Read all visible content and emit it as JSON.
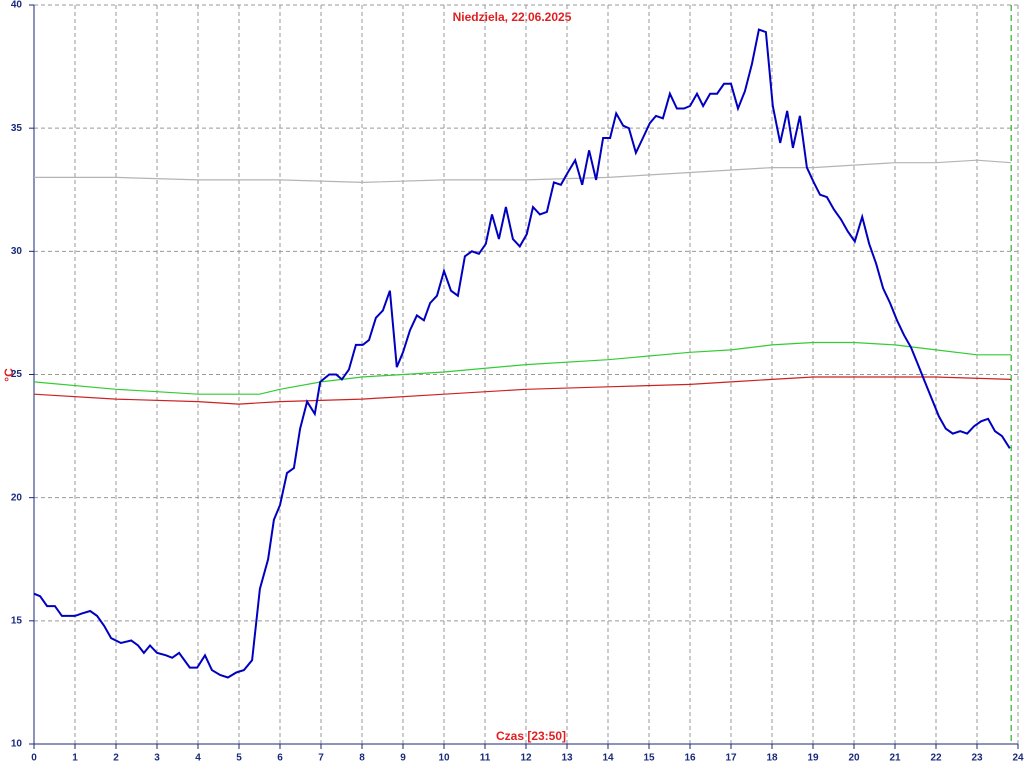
{
  "chart_data": {
    "type": "line",
    "title": "Niedziela, 22.06.2025",
    "x_label": "Czas [23:50]",
    "y_label": "°C",
    "xlim": [
      0,
      24
    ],
    "ylim": [
      10,
      40
    ],
    "xticks": [
      0,
      1,
      2,
      3,
      4,
      5,
      6,
      7,
      8,
      9,
      10,
      11,
      12,
      13,
      14,
      15,
      16,
      17,
      18,
      19,
      20,
      21,
      22,
      23,
      24
    ],
    "yticks": [
      10,
      15,
      20,
      25,
      30,
      35,
      40
    ],
    "grid": true,
    "marker_x": 23.833,
    "marker_color": "#00a000",
    "series": [
      {
        "color": "#b4b4b4",
        "x": [
          0,
          2,
          4,
          6,
          8,
          10,
          12,
          14,
          16,
          18,
          19,
          20,
          21,
          22,
          23,
          23.83
        ],
        "values": [
          33.0,
          33.0,
          32.9,
          32.9,
          32.8,
          32.9,
          32.9,
          33.0,
          33.2,
          33.4,
          33.4,
          33.5,
          33.6,
          33.6,
          33.7,
          33.6
        ]
      },
      {
        "color": "#33cc33",
        "x": [
          0,
          2,
          3,
          4,
          5,
          5.5,
          6,
          7,
          8,
          10,
          12,
          14,
          16,
          17,
          18,
          19,
          20,
          21,
          22,
          23,
          23.83
        ],
        "values": [
          24.7,
          24.4,
          24.3,
          24.2,
          24.2,
          24.2,
          24.4,
          24.7,
          24.9,
          25.1,
          25.4,
          25.6,
          25.9,
          26.0,
          26.2,
          26.3,
          26.3,
          26.2,
          26.0,
          25.8,
          25.8
        ]
      },
      {
        "color": "#cc2222",
        "x": [
          0,
          2,
          4,
          5,
          6,
          8,
          10,
          12,
          14,
          16,
          17,
          18,
          19,
          20,
          22,
          23.83
        ],
        "values": [
          24.2,
          24.0,
          23.9,
          23.8,
          23.9,
          24.0,
          24.2,
          24.4,
          24.5,
          24.6,
          24.7,
          24.8,
          24.9,
          24.9,
          24.9,
          24.8
        ]
      },
      {
        "color": "#0000c0",
        "x": [
          0,
          0.15,
          0.32,
          0.51,
          0.68,
          1.0,
          1.17,
          1.37,
          1.54,
          1.71,
          1.88,
          2.12,
          2.37,
          2.54,
          2.68,
          2.83,
          3.0,
          3.22,
          3.37,
          3.54,
          3.8,
          3.98,
          4.17,
          4.34,
          4.54,
          4.73,
          4.93,
          5.12,
          5.32,
          5.51,
          5.71,
          5.85,
          6.0,
          6.17,
          6.34,
          6.49,
          6.66,
          6.85,
          6.98,
          7.2,
          7.37,
          7.51,
          7.68,
          7.85,
          8.02,
          8.17,
          8.34,
          8.51,
          8.68,
          8.85,
          9.0,
          9.17,
          9.34,
          9.51,
          9.66,
          9.83,
          10.0,
          10.17,
          10.34,
          10.51,
          10.68,
          10.85,
          11.02,
          11.17,
          11.34,
          11.51,
          11.68,
          11.85,
          12.02,
          12.17,
          12.34,
          12.51,
          12.68,
          12.85,
          13.02,
          13.2,
          13.37,
          13.54,
          13.71,
          13.88,
          14.05,
          14.2,
          14.37,
          14.51,
          14.68,
          14.85,
          15.02,
          15.17,
          15.34,
          15.51,
          15.68,
          15.85,
          16.0,
          16.17,
          16.32,
          16.49,
          16.66,
          16.83,
          17.0,
          17.17,
          17.34,
          17.51,
          17.68,
          17.85,
          18.02,
          18.2,
          18.37,
          18.51,
          18.68,
          18.85,
          19.02,
          19.17,
          19.34,
          19.51,
          19.68,
          19.85,
          20.02,
          20.2,
          20.37,
          20.54,
          20.71,
          20.88,
          21.05,
          21.22,
          21.39,
          21.56,
          21.73,
          21.9,
          22.07,
          22.24,
          22.41,
          22.59,
          22.76,
          22.93,
          23.1,
          23.27,
          23.44,
          23.61,
          23.8
        ],
        "values": [
          16.1,
          16.0,
          15.6,
          15.6,
          15.2,
          15.2,
          15.3,
          15.4,
          15.2,
          14.8,
          14.3,
          14.1,
          14.2,
          14.0,
          13.7,
          14.0,
          13.7,
          13.6,
          13.5,
          13.7,
          13.1,
          13.1,
          13.6,
          13.0,
          12.8,
          12.7,
          12.9,
          13.0,
          13.4,
          16.3,
          17.5,
          19.1,
          19.7,
          21.0,
          21.2,
          22.8,
          23.9,
          23.4,
          24.7,
          25.0,
          25.0,
          24.8,
          25.2,
          26.2,
          26.2,
          26.4,
          27.3,
          27.6,
          28.4,
          25.3,
          25.9,
          26.8,
          27.4,
          27.2,
          27.9,
          28.2,
          29.2,
          28.4,
          28.2,
          29.8,
          30.0,
          29.9,
          30.3,
          31.5,
          30.5,
          31.8,
          30.5,
          30.2,
          30.7,
          31.8,
          31.5,
          31.6,
          32.8,
          32.7,
          33.2,
          33.7,
          32.7,
          34.1,
          32.9,
          34.6,
          34.6,
          35.6,
          35.1,
          35.0,
          34.0,
          34.6,
          35.2,
          35.5,
          35.4,
          36.4,
          35.8,
          35.8,
          35.9,
          36.4,
          35.9,
          36.4,
          36.4,
          36.8,
          36.8,
          35.8,
          36.5,
          37.6,
          39.0,
          38.9,
          35.9,
          34.4,
          35.7,
          34.2,
          35.5,
          33.4,
          32.8,
          32.3,
          32.2,
          31.7,
          31.3,
          30.8,
          30.4,
          31.4,
          30.3,
          29.5,
          28.5,
          27.9,
          27.2,
          26.6,
          26.1,
          25.4,
          24.7,
          24.0,
          23.3,
          22.8,
          22.6,
          22.7,
          22.6,
          22.9,
          23.1,
          23.2,
          22.7,
          22.5,
          22.0
        ]
      }
    ]
  }
}
